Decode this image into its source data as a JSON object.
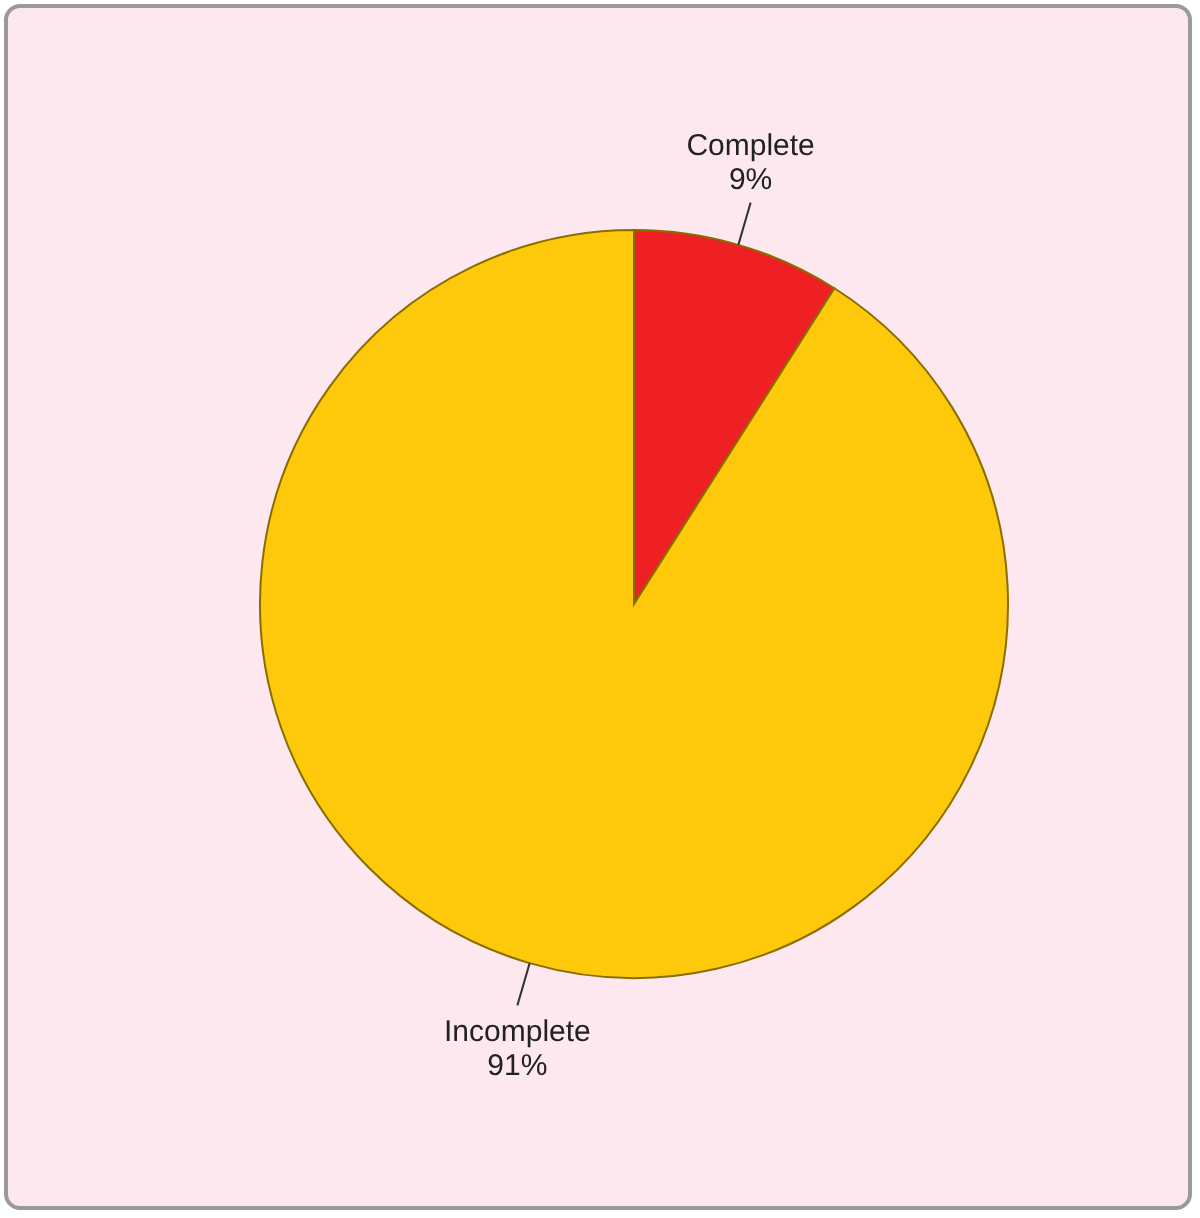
{
  "chart_data": {
    "type": "pie",
    "categories": [
      "Complete",
      "Incomplete"
    ],
    "values": [
      9,
      91
    ],
    "value_labels": [
      "9%",
      "91%"
    ],
    "colors": [
      "#ee2024",
      "#fdc90a"
    ]
  }
}
